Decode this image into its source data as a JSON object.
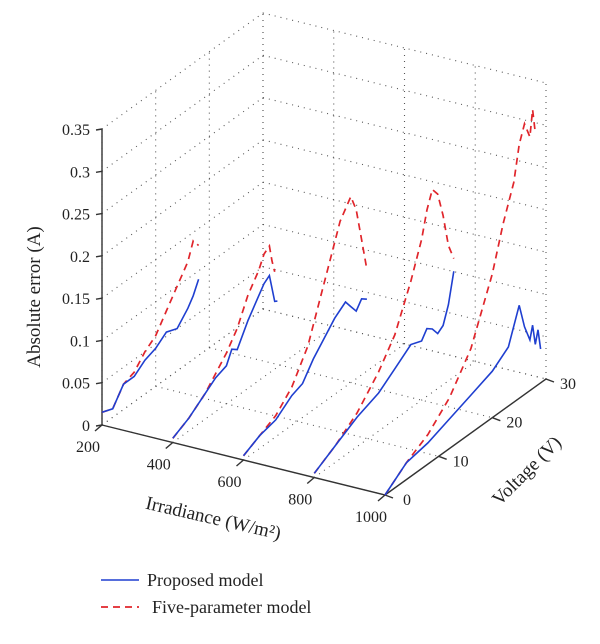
{
  "chart_data": {
    "type": "line3d",
    "title": "",
    "xlabel": "Irradiance (W/m²)",
    "ylabel": "Voltage (V)",
    "zlabel": "Absolute error (A)",
    "x_ticks": [
      "200",
      "400",
      "600",
      "800",
      "1000"
    ],
    "y_ticks": [
      "0",
      "10",
      "20",
      "30"
    ],
    "z_ticks": [
      "0",
      "0.05",
      "0.1",
      "0.15",
      "0.2",
      "0.25",
      "0.3",
      "0.35"
    ],
    "xlim": [
      200,
      1000
    ],
    "ylim": [
      0,
      30
    ],
    "zlim": [
      0,
      0.35
    ],
    "grid": true,
    "legend": "bottom-left",
    "series": [
      {
        "name": "Proposed model",
        "color": "#1f3fd0",
        "traces": [
          {
            "irradiance": 200,
            "voltage": [
              0,
              2,
              4,
              6,
              8,
              10,
              12,
              14,
              16,
              17,
              18
            ],
            "error": [
              0.015,
              0.01,
              0.03,
              0.03,
              0.04,
              0.045,
              0.055,
              0.05,
              0.065,
              0.075,
              0.09
            ]
          },
          {
            "irradiance": 400,
            "voltage": [
              0,
              3,
              6,
              8,
              10,
              11,
              12,
              14,
              16,
              17,
              18,
              19,
              19.5
            ],
            "error": [
              0.005,
              0.015,
              0.03,
              0.04,
              0.045,
              0.06,
              0.055,
              0.08,
              0.1,
              0.11,
              0.115,
              0.08,
              0.078
            ]
          },
          {
            "irradiance": 600,
            "voltage": [
              0,
              3,
              6,
              9,
              11,
              13,
              15,
              17,
              19,
              20,
              21,
              22,
              23
            ],
            "error": [
              0.005,
              0.015,
              0.02,
              0.035,
              0.04,
              0.06,
              0.075,
              0.09,
              0.1,
              0.09,
              0.08,
              0.09,
              0.085
            ]
          },
          {
            "irradiance": 800,
            "voltage": [
              0,
              4,
              8,
              12,
              15,
              18,
              20,
              21,
              22,
              23,
              24,
              25,
              26
            ],
            "error": [
              0.005,
              0.02,
              0.035,
              0.045,
              0.06,
              0.075,
              0.07,
              0.08,
              0.075,
              0.065,
              0.07,
              0.09,
              0.125
            ]
          },
          {
            "irradiance": 1000,
            "voltage": [
              0,
              4,
              8,
              12,
              16,
              20,
              23,
              25,
              26,
              27,
              27.5,
              28,
              28.5,
              29
            ],
            "error": [
              0.0,
              0.02,
              0.025,
              0.035,
              0.045,
              0.055,
              0.07,
              0.11,
              0.08,
              0.06,
              0.075,
              0.05,
              0.065,
              0.04
            ]
          }
        ]
      },
      {
        "name": "Five-parameter model",
        "color": "#e0252b",
        "traces": [
          {
            "irradiance": 200,
            "voltage": [
              0,
              2,
              4,
              6,
              8,
              10,
              12,
              14,
              15,
              16,
              17,
              18
            ],
            "error": [
              0.015,
              0.01,
              0.03,
              0.035,
              0.05,
              0.06,
              0.08,
              0.1,
              0.11,
              0.12,
              0.14,
              0.13
            ]
          },
          {
            "irradiance": 400,
            "voltage": [
              0,
              3,
              6,
              8,
              10,
              12,
              14,
              16,
              17,
              18,
              18.5,
              19
            ],
            "error": [
              0.005,
              0.015,
              0.03,
              0.045,
              0.06,
              0.08,
              0.11,
              0.13,
              0.145,
              0.15,
              0.13,
              0.115
            ]
          },
          {
            "irradiance": 600,
            "voltage": [
              0,
              3,
              6,
              9,
              12,
              14,
              16,
              18,
              20,
              21,
              22,
              23
            ],
            "error": [
              0.005,
              0.015,
              0.025,
              0.045,
              0.08,
              0.12,
              0.16,
              0.2,
              0.22,
              0.2,
              0.16,
              0.12
            ]
          },
          {
            "irradiance": 800,
            "voltage": [
              0,
              4,
              8,
              12,
              15,
              18,
              20,
              21,
              22,
              23,
              24,
              25,
              26
            ],
            "error": [
              0.005,
              0.02,
              0.04,
              0.07,
              0.1,
              0.15,
              0.19,
              0.22,
              0.24,
              0.23,
              0.2,
              0.16,
              0.14
            ]
          },
          {
            "irradiance": 1000,
            "voltage": [
              0,
              4,
              8,
              12,
              16,
              20,
              22,
              24,
              25,
              26,
              27,
              27.5,
              28
            ],
            "error": [
              0.0,
              0.02,
              0.035,
              0.06,
              0.1,
              0.17,
              0.22,
              0.26,
              0.3,
              0.32,
              0.3,
              0.33,
              0.3
            ]
          }
        ]
      }
    ]
  }
}
